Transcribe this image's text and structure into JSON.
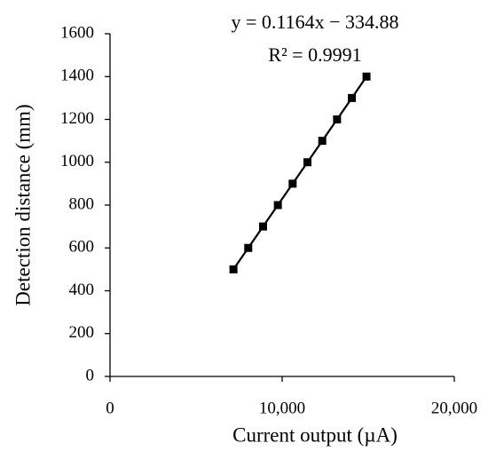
{
  "chart_data": {
    "type": "scatter",
    "annotations": [
      "y = 0.1164x − 334.88",
      "R² = 0.9991"
    ],
    "x_label": "Current output (µA)",
    "y_label": "Detection distance (mm)",
    "x": [
      7170,
      8030,
      8890,
      9750,
      10610,
      11470,
      12330,
      13190,
      14050,
      14900
    ],
    "values": [
      500,
      600,
      700,
      800,
      900,
      1000,
      1100,
      1200,
      1300,
      1400
    ],
    "color": "#000000",
    "xlim": [
      0,
      20000
    ],
    "xticks": [
      0,
      {
        "value": 10000,
        "label": "10,000"
      },
      {
        "value": 20000,
        "label": "20,000"
      }
    ],
    "ylim": [
      0,
      1600
    ],
    "yticks": [
      0,
      200,
      400,
      600,
      800,
      1000,
      1200,
      1400,
      1600
    ],
    "grid": false
  }
}
